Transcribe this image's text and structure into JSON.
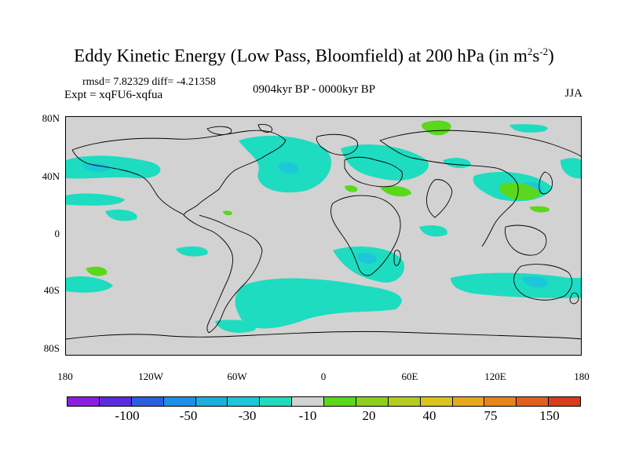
{
  "title": {
    "main": "Eddy Kinetic Energy (Low Pass, Bloomfield) at 200 hPa (in m",
    "sup1": "2",
    "mid": "s",
    "sup2": "-2",
    "end": ")"
  },
  "stats": "rmsd= 7.82329 diff= -4.21358",
  "experiment": "Expt = xqFU6-xqfua",
  "period": "0904kyr BP - 0000kyr BP",
  "season": "JJA",
  "lat_labels": [
    "80N",
    "40N",
    "0",
    "40S",
    "80S"
  ],
  "lon_labels": [
    "180",
    "120W",
    "60W",
    "0",
    "60E",
    "120E",
    "180"
  ],
  "colorbar": {
    "colors": [
      "#8a1ee0",
      "#5a2ce0",
      "#2c5ee0",
      "#1e90e8",
      "#1cb0dc",
      "#1cc8d8",
      "#1edcc0",
      "#d2d2d2",
      "#5ad81c",
      "#8cd01c",
      "#b4cc1c",
      "#d8c41c",
      "#e8a81c",
      "#e8841c",
      "#e0601c",
      "#d83c1c"
    ],
    "tick_labels": [
      "-100",
      "-50",
      "-30",
      "-10",
      "20",
      "40",
      "75",
      "150"
    ]
  },
  "map_colors": {
    "background": "#d2d2d2",
    "negative_light": "#1edcc0",
    "negative_mid": "#1cc8d8",
    "negative_strong": "#1cb0dc",
    "positive": "#5ad81c",
    "coastline": "#000000"
  }
}
